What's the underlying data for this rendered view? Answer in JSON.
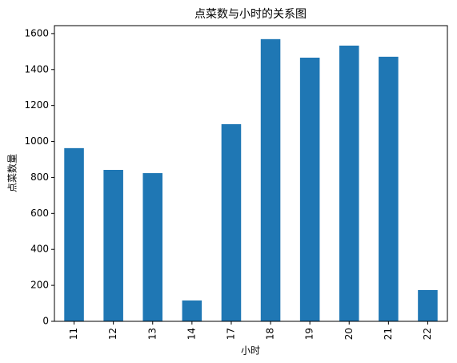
{
  "chart_data": {
    "type": "bar",
    "title": "点菜数与小时的关系图",
    "x_label": "小时",
    "y_label": "点菜数量",
    "categories": [
      "11",
      "12",
      "13",
      "14",
      "17",
      "18",
      "19",
      "20",
      "21",
      "22"
    ],
    "values": [
      963,
      842,
      824,
      116,
      1096,
      1569,
      1466,
      1533,
      1471,
      174
    ],
    "color": "#1f77b4",
    "ylim": [
      0,
      1644
    ],
    "yticks": [
      0,
      200,
      400,
      600,
      800,
      1000,
      1200,
      1400,
      1600
    ],
    "grid": false
  }
}
